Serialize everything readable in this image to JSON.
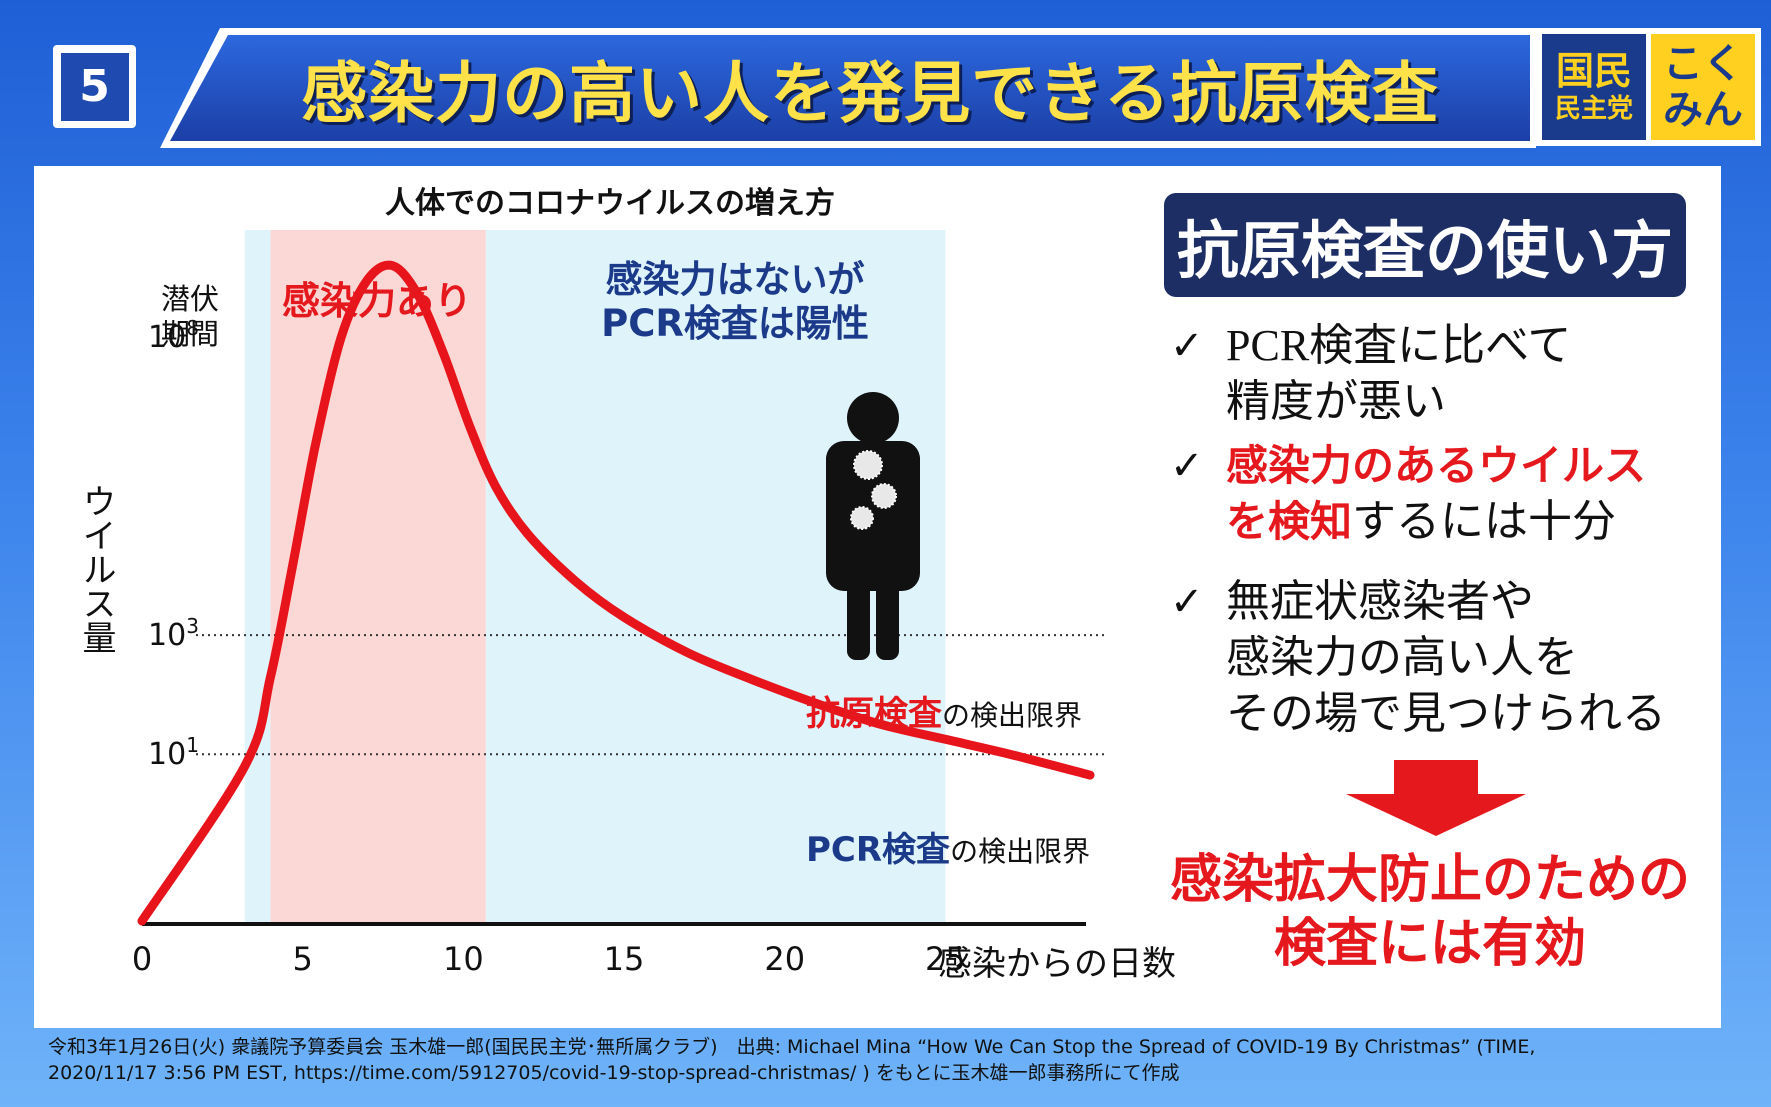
{
  "slide_number": "5",
  "title": "感染力の高い人を発見できる抗原検査",
  "logo": {
    "navy_big": "国民",
    "navy_small": "民主党",
    "yellow_top": "こく",
    "yellow_bottom": "みん"
  },
  "chart_data": {
    "type": "line",
    "title": "人体でのコロナウイルスの増え方",
    "xlabel": "感染からの日数",
    "ylabel": "ウイルス量",
    "x_ticks": [
      "0",
      "5",
      "10",
      "15",
      "20",
      "25"
    ],
    "xlim": [
      0,
      29.5
    ],
    "y_scale": "log",
    "ylim_log10": [
      -1.85,
      9.8
    ],
    "y_ticks": [
      {
        "base": "10",
        "exp": "8",
        "value_log10": 8
      },
      {
        "base": "10",
        "exp": "3",
        "value_log10": 3
      },
      {
        "base": "10",
        "exp": "1",
        "value_log10": 1
      }
    ],
    "series": [
      {
        "color": "#e8141b",
        "x": [
          0,
          3.2,
          4.0,
          4.7,
          5.4,
          6.2,
          7.0,
          7.8,
          8.6,
          9.4,
          10.2,
          11.0,
          12.0,
          13.5,
          15.0,
          17.0,
          19.0,
          21.0,
          23.0,
          25.0,
          27.0,
          29.5
        ],
        "log10": [
          -1.8,
          0.8,
          2.3,
          4.2,
          6.2,
          8.0,
          8.95,
          9.2,
          8.7,
          7.7,
          6.5,
          5.5,
          4.7,
          3.9,
          3.3,
          2.7,
          2.25,
          1.85,
          1.5,
          1.25,
          1.0,
          0.65
        ]
      }
    ],
    "regions": [
      {
        "label": "潜伏期間",
        "x_start": 3.2,
        "x_end": 4.0,
        "color": "#dff3fb"
      },
      {
        "label": "感染力あり",
        "x_start": 4.0,
        "x_end": 10.7,
        "color": "#fbd8d6"
      },
      {
        "label": "感染力はないが PCR検査は陽性",
        "x_start": 10.7,
        "x_end": 25.0,
        "color": "#dff3fb"
      }
    ],
    "threshold_lines": [
      {
        "label": "抗原検査の検出限界",
        "log10": 3
      },
      {
        "label": "PCR検査の検出限界",
        "log10": 1
      }
    ],
    "grid": false
  },
  "zones": {
    "latent_line1": "潜伏",
    "latent_line2": "期間",
    "infectious": "感染力あり",
    "noninf_line1": "感染力はないが",
    "noninf_line2": "PCR検査は陽性"
  },
  "limits": {
    "antigen_strong": "抗原検査",
    "antigen_rest": "の検出限界",
    "pcr_strong": "PCR検査",
    "pcr_rest": "の検出限界"
  },
  "howto_title": "抗原検査の使い方",
  "bullets": {
    "check": "✓",
    "b1_line1": "PCR検査に比べて",
    "b1_line2": "精度が悪い",
    "b2_line1_hl": "感染力のあるウイルス",
    "b2_line2_hl": "を検知",
    "b2_line2_rest": "するには十分",
    "b3_line1": "無症状感染者や",
    "b3_line2": "感染力の高い人を",
    "b3_line3": "その場で見つけられる"
  },
  "conclusion_line1": "感染拡大防止のための",
  "conclusion_line2": "検査には有効",
  "arrow_color": "#e5181d",
  "footer_line1": "令和3年1月26日(火) 衆議院予算委員会 玉木雄一郎(国民民主党･無所属クラブ)　出典: Michael Mina “How We Can Stop the Spread of COVID-19 By Christmas” (TIME,",
  "footer_line2": "2020/11/17 3:56 PM EST, https://time.com/5912705/covid-19-stop-spread-christmas/ ) をもとに玉木雄一郎事務所にて作成"
}
